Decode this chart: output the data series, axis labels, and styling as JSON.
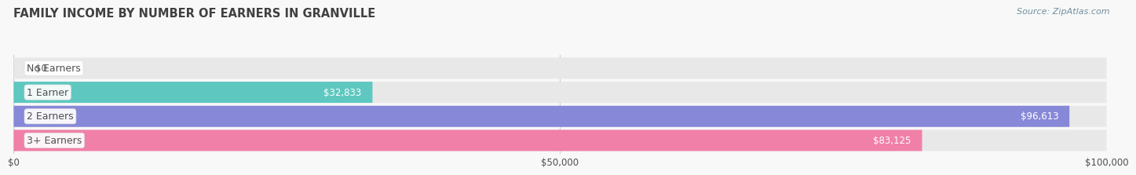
{
  "title": "FAMILY INCOME BY NUMBER OF EARNERS IN GRANVILLE",
  "source": "Source: ZipAtlas.com",
  "categories": [
    "No Earners",
    "1 Earner",
    "2 Earners",
    "3+ Earners"
  ],
  "values": [
    0,
    32833,
    96613,
    83125
  ],
  "bar_colors": [
    "#c8a0cc",
    "#5ec8c0",
    "#8888d8",
    "#f080a8"
  ],
  "bar_bg_color": "#e8e8e8",
  "value_labels": [
    "$0",
    "$32,833",
    "$96,613",
    "$83,125"
  ],
  "x_ticks": [
    0,
    50000,
    100000
  ],
  "x_tick_labels": [
    "$0",
    "$50,000",
    "$100,000"
  ],
  "xlim": [
    0,
    100000
  ],
  "background_color": "#f8f8f8",
  "title_color": "#404040",
  "label_color": "#505050",
  "value_color_outside": "#606060",
  "source_color": "#7090a0"
}
